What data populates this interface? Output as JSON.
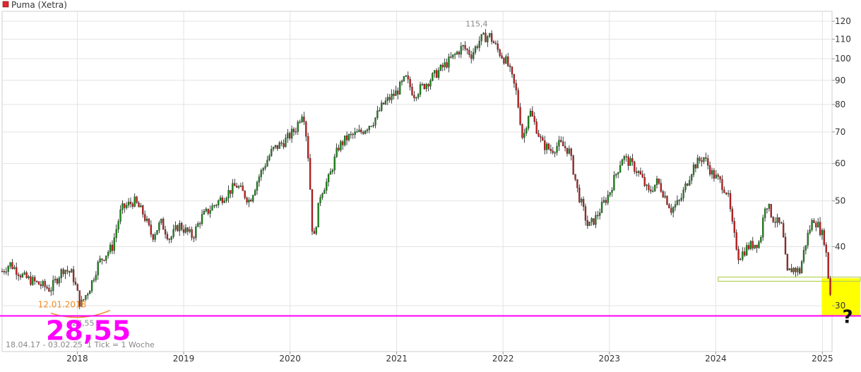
{
  "chart_data": {
    "type": "candlestick",
    "title": "Puma (Xetra)",
    "date_range": "18.04.17 - 03.02.25",
    "tick_info": "1 Tick = 1 Woche",
    "x_tick_labels": [
      "2018",
      "2019",
      "2020",
      "2021",
      "2022",
      "2023",
      "2024",
      "2025"
    ],
    "y_tick_labels": [
      "30",
      "40",
      "50",
      "60",
      "70",
      "80",
      "90",
      "100",
      "110",
      "120"
    ],
    "y_scale": "log",
    "ylim": [
      24,
      126
    ],
    "grid": true,
    "annotations": {
      "high_label": "115,4",
      "high": {
        "date": "2021-11-15",
        "value": 115.4
      },
      "low_date_label": "12.01.2018",
      "low_small_label": "28,55",
      "low_big_label": "28,55",
      "low": {
        "date": "2018-01-12",
        "value": 28.55
      },
      "question_mark": "?",
      "support_zone": {
        "from": "2024-04-15",
        "to": "2025-02-03",
        "low": 33.8,
        "high": 34.5
      },
      "target_zone": {
        "from": "2025-01-13",
        "to": "2025-02-03",
        "low": 28.55,
        "high": 34.3
      }
    },
    "series": [
      {
        "anchors": [
          [
            "2017-04-18",
            35.5
          ],
          [
            "2017-05-15",
            36.8
          ],
          [
            "2017-07-01",
            34.5
          ],
          [
            "2017-08-15",
            33.5
          ],
          [
            "2017-10-01",
            32.5
          ],
          [
            "2017-11-15",
            36.0
          ],
          [
            "2017-12-15",
            35.0
          ],
          [
            "2018-01-12",
            30.0
          ],
          [
            "2018-02-15",
            33.0
          ],
          [
            "2018-03-15",
            37.0
          ],
          [
            "2018-05-01",
            40.0
          ],
          [
            "2018-06-01",
            48.0
          ],
          [
            "2018-07-15",
            50.0
          ],
          [
            "2018-08-15",
            47.0
          ],
          [
            "2018-09-15",
            42.0
          ],
          [
            "2018-10-15",
            45.0
          ],
          [
            "2018-11-15",
            41.5
          ],
          [
            "2018-12-15",
            44.5
          ],
          [
            "2019-02-01",
            42.0
          ],
          [
            "2019-03-01",
            46.0
          ],
          [
            "2019-05-01",
            50.0
          ],
          [
            "2019-07-01",
            54.0
          ],
          [
            "2019-08-15",
            50.0
          ],
          [
            "2019-09-15",
            56.0
          ],
          [
            "2019-11-01",
            64.0
          ],
          [
            "2019-12-15",
            67.0
          ],
          [
            "2020-01-20",
            71.0
          ],
          [
            "2020-02-15",
            78.0
          ],
          [
            "2020-03-01",
            65.0
          ],
          [
            "2020-03-20",
            40.0
          ],
          [
            "2020-04-15",
            52.0
          ],
          [
            "2020-05-15",
            56.0
          ],
          [
            "2020-06-15",
            65.0
          ],
          [
            "2020-07-15",
            68.0
          ],
          [
            "2020-09-01",
            70.0
          ],
          [
            "2020-10-15",
            74.0
          ],
          [
            "2020-11-15",
            80.0
          ],
          [
            "2021-01-01",
            85.0
          ],
          [
            "2021-02-01",
            91.0
          ],
          [
            "2021-03-01",
            84.0
          ],
          [
            "2021-04-15",
            89.0
          ],
          [
            "2021-06-01",
            95.0
          ],
          [
            "2021-07-15",
            101.0
          ],
          [
            "2021-08-15",
            106.0
          ],
          [
            "2021-09-15",
            102.0
          ],
          [
            "2021-10-15",
            110.0
          ],
          [
            "2021-11-15",
            112.0
          ],
          [
            "2021-12-15",
            104.0
          ],
          [
            "2022-01-15",
            98.0
          ],
          [
            "2022-02-15",
            85.0
          ],
          [
            "2022-03-10",
            67.0
          ],
          [
            "2022-04-01",
            78.0
          ],
          [
            "2022-05-15",
            66.0
          ],
          [
            "2022-06-15",
            64.0
          ],
          [
            "2022-07-15",
            66.0
          ],
          [
            "2022-08-15",
            64.0
          ],
          [
            "2022-09-15",
            52.0
          ],
          [
            "2022-10-20",
            44.0
          ],
          [
            "2022-11-15",
            46.0
          ],
          [
            "2023-01-01",
            52.0
          ],
          [
            "2023-02-15",
            62.0
          ],
          [
            "2023-03-15",
            60.0
          ],
          [
            "2023-04-15",
            57.0
          ],
          [
            "2023-05-15",
            52.0
          ],
          [
            "2023-06-15",
            55.0
          ],
          [
            "2023-08-01",
            48.0
          ],
          [
            "2023-09-01",
            50.0
          ],
          [
            "2023-10-15",
            59.0
          ],
          [
            "2023-11-20",
            62.0
          ],
          [
            "2023-12-20",
            57.0
          ],
          [
            "2024-01-15",
            55.0
          ],
          [
            "2024-02-10",
            52.0
          ],
          [
            "2024-03-01",
            43.0
          ],
          [
            "2024-03-20",
            38.0
          ],
          [
            "2024-04-20",
            40.0
          ],
          [
            "2024-06-01",
            41.0
          ],
          [
            "2024-06-20",
            50.0
          ],
          [
            "2024-07-15",
            46.0
          ],
          [
            "2024-08-15",
            44.0
          ],
          [
            "2024-09-01",
            35.0
          ],
          [
            "2024-09-20",
            36.0
          ],
          [
            "2024-10-15",
            35.5
          ],
          [
            "2024-11-10",
            42.0
          ],
          [
            "2024-12-01",
            46.0
          ],
          [
            "2024-12-20",
            44.0
          ],
          [
            "2025-01-10",
            41.0
          ],
          [
            "2025-01-20",
            35.0
          ],
          [
            "2025-02-03",
            29.5
          ]
        ]
      }
    ]
  }
}
